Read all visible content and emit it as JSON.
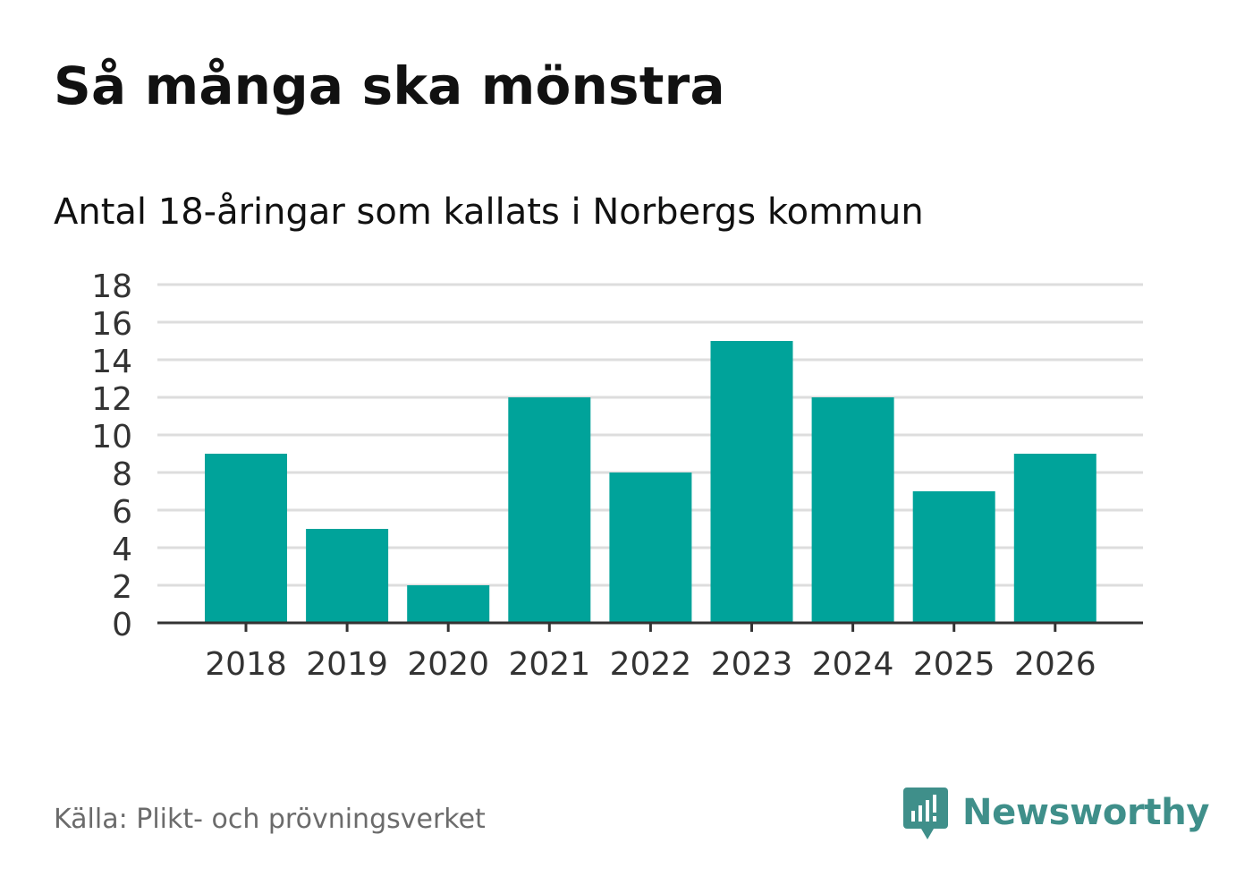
{
  "header": {
    "title": "Så många ska mönstra",
    "subtitle": "Antal 18-åringar som kallats i Norbergs kommun"
  },
  "footer": {
    "source": "Källa: Plikt- och prövningsverket",
    "brand": "Newsworthy",
    "brand_icon": "newsworthy-logo-icon"
  },
  "colors": {
    "bar": "#00A39A",
    "grid": "#DDDDDD",
    "axis": "#333333",
    "text": "#111111",
    "muted": "#6B6B6B",
    "brand": "#3F8F8A"
  },
  "chart_data": {
    "type": "bar",
    "title": "Så många ska mönstra",
    "subtitle": "Antal 18-åringar som kallats i Norbergs kommun",
    "xlabel": "",
    "ylabel": "",
    "categories": [
      "2018",
      "2019",
      "2020",
      "2021",
      "2022",
      "2023",
      "2024",
      "2025",
      "2026"
    ],
    "values": [
      9,
      5,
      2,
      12,
      8,
      15,
      12,
      7,
      9
    ],
    "ylim": [
      0,
      18
    ],
    "yticks": [
      0,
      2,
      4,
      6,
      8,
      10,
      12,
      14,
      16,
      18
    ],
    "grid": true,
    "legend": "none"
  }
}
